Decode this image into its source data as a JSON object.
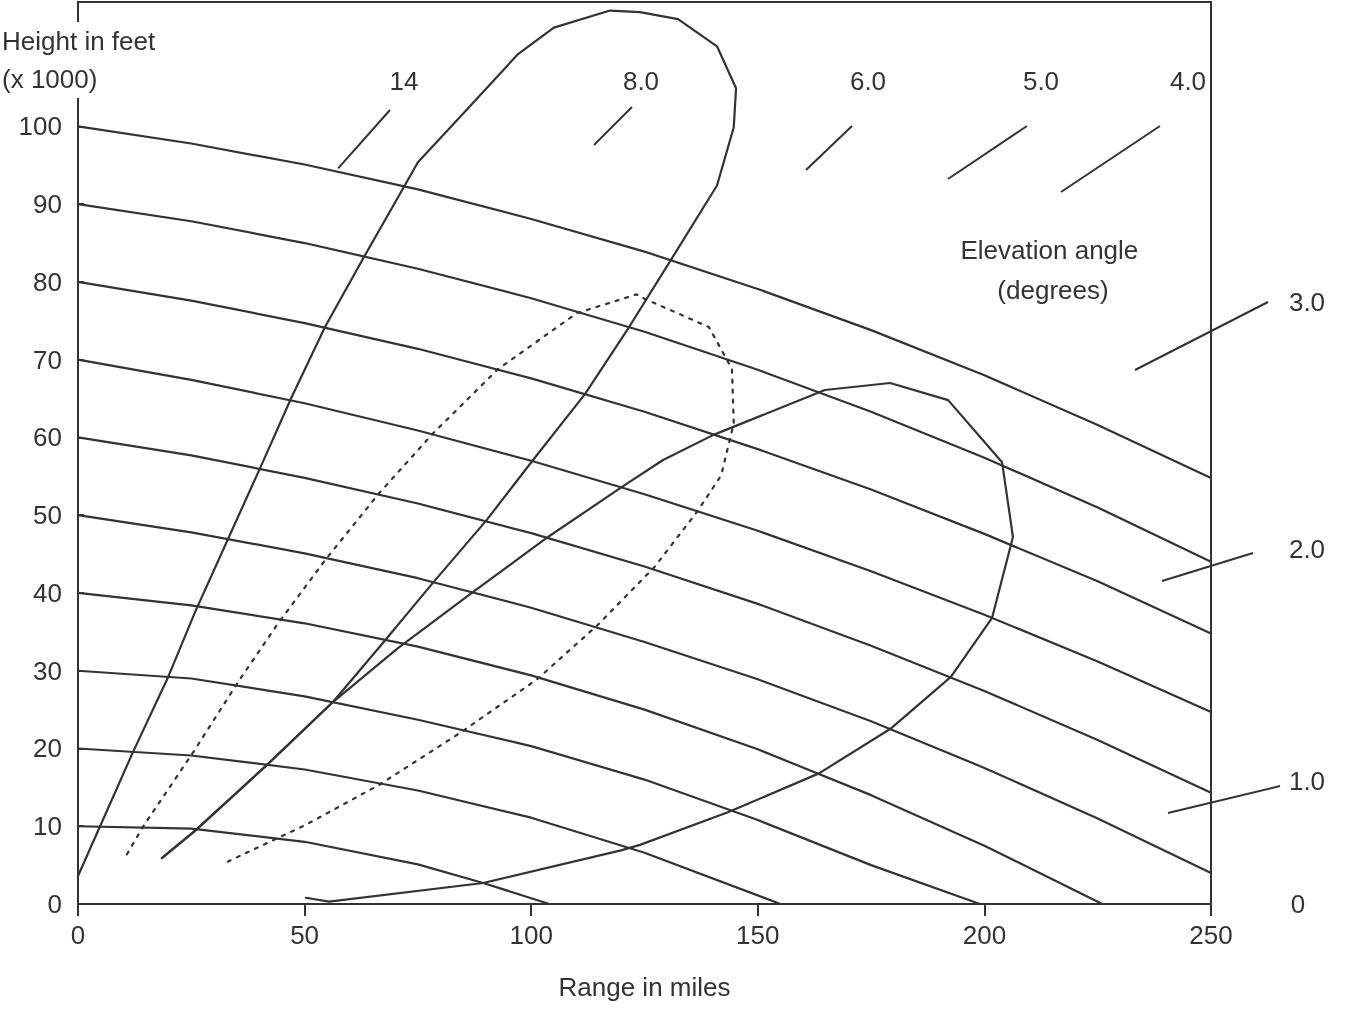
{
  "chart_data": {
    "type": "line",
    "xlabel": "Range in miles",
    "ylabel": "Height in feet (x 1000)",
    "xlim": [
      0,
      250
    ],
    "xticks": [
      0,
      50,
      100,
      150,
      200,
      250
    ],
    "ylim": [
      0,
      116
    ],
    "yticks": [
      0,
      10,
      20,
      30,
      40,
      50,
      60,
      70,
      80,
      90,
      100
    ],
    "grid": false,
    "marker": "none",
    "series": [
      {
        "color": "#333333",
        "line_style": "solid",
        "x": [
          0,
          25,
          50,
          75,
          100,
          125,
          150,
          175,
          200,
          225,
          250
        ],
        "values": [
          100,
          97.8,
          95.1,
          91.9,
          88.1,
          83.9,
          79.1,
          73.8,
          68.0,
          61.6,
          54.8
        ]
      },
      {
        "color": "#333333",
        "line_style": "solid",
        "x": [
          0,
          25,
          50,
          75,
          100,
          125,
          150,
          175,
          200,
          225,
          250
        ],
        "values": [
          90,
          87.8,
          85.0,
          81.7,
          77.9,
          73.6,
          68.7,
          63.3,
          57.4,
          51.0,
          44.0
        ]
      },
      {
        "color": "#333333",
        "line_style": "solid",
        "x": [
          0,
          25,
          50,
          75,
          100,
          125,
          150,
          175,
          200,
          225,
          250
        ],
        "values": [
          80,
          77.6,
          74.7,
          71.4,
          67.6,
          63.3,
          58.5,
          53.3,
          47.6,
          41.5,
          34.8
        ]
      },
      {
        "color": "#333333",
        "line_style": "solid",
        "x": [
          0,
          25,
          50,
          75,
          100,
          125,
          150,
          175,
          200,
          225,
          250
        ],
        "values": [
          70,
          67.4,
          64.4,
          60.9,
          57.0,
          52.7,
          48.0,
          42.8,
          37.2,
          31.2,
          24.7
        ]
      },
      {
        "color": "#333333",
        "line_style": "solid",
        "x": [
          0,
          25,
          50,
          75,
          100,
          125,
          150,
          175,
          200,
          225,
          250
        ],
        "values": [
          60,
          57.7,
          54.8,
          51.5,
          47.7,
          43.4,
          38.6,
          33.2,
          27.4,
          21.1,
          14.3
        ]
      },
      {
        "color": "#333333",
        "line_style": "solid",
        "x": [
          0,
          25,
          50,
          75,
          100,
          125,
          150,
          175,
          200,
          225,
          250
        ],
        "values": [
          50,
          47.8,
          45.1,
          41.9,
          38.1,
          33.7,
          28.9,
          23.5,
          17.5,
          11.0,
          4.0
        ]
      },
      {
        "color": "#333333",
        "line_style": "solid",
        "x": [
          0,
          25,
          50,
          75,
          100,
          125,
          150,
          175,
          200,
          226
        ],
        "values": [
          40,
          38.4,
          36.1,
          33.1,
          29.4,
          25.0,
          19.9,
          14.0,
          7.5,
          0
        ]
      },
      {
        "color": "#333333",
        "line_style": "solid",
        "x": [
          0,
          25,
          50,
          75,
          100,
          125,
          150,
          175,
          199
        ],
        "values": [
          30,
          29.0,
          26.7,
          23.7,
          20.3,
          16.0,
          10.8,
          5.0,
          0
        ]
      },
      {
        "color": "#333333",
        "line_style": "solid",
        "x": [
          0,
          25,
          50,
          75,
          100,
          125,
          155
        ],
        "values": [
          20,
          19.1,
          17.3,
          14.6,
          11.1,
          6.6,
          0
        ]
      },
      {
        "color": "#333333",
        "line_style": "solid",
        "x": [
          0,
          25,
          50,
          75,
          89.4,
          104
        ],
        "values": [
          10,
          9.7,
          8.0,
          5.1,
          2.7,
          0
        ]
      },
      {
        "color": "#333333",
        "line_style": "solid",
        "x": [
          0,
          12.1,
          19.9,
          25.8,
          33.3,
          40.6,
          47.0,
          54.5,
          63.1,
          71.5,
          75.0,
          82.5,
          97.1,
          105.0,
          117.4,
          124.0,
          132.4,
          141.0,
          145.2,
          144.7,
          141.0,
          130.8,
          121.6,
          111.9,
          100.4,
          90.2,
          78.3,
          66.9,
          56.3,
          41.9,
          25.8,
          18.5
        ],
        "values": [
          3.6,
          19.5,
          29.2,
          37.5,
          47.2,
          56.6,
          65.0,
          74.2,
          83.2,
          91.8,
          95.4,
          100.1,
          109.3,
          112.7,
          114.9,
          114.7,
          113.8,
          110.3,
          104.9,
          99.9,
          92.4,
          82.8,
          74.2,
          65.6,
          57.1,
          49.4,
          41.3,
          33.3,
          26.0,
          18.0,
          9.4,
          5.9
        ]
      },
      {
        "color": "#333333",
        "line_style": "solid",
        "x": [
          18.5,
          25.8,
          41.9,
          56.3,
          70.6,
          86.9,
          103.7,
          120.7,
          129.1,
          140.1,
          164.8,
          179.2,
          192.0,
          203.9,
          206.3,
          201.7,
          192.6,
          179.2,
          163.5,
          143.4,
          124.0,
          119.8,
          89.4,
          55.4,
          50.3
        ],
        "values": [
          5.9,
          9.4,
          18.0,
          26.0,
          32.9,
          40.0,
          47.2,
          53.9,
          57.1,
          60.3,
          66.1,
          67.0,
          64.8,
          56.8,
          47.2,
          36.8,
          29.2,
          22.5,
          16.8,
          11.8,
          7.6,
          6.9,
          2.7,
          0.3,
          0.8
        ]
      },
      {
        "color": "#333333",
        "line_style": "dotted",
        "x": [
          10.8,
          14.3,
          25.4,
          35.5,
          43.9,
          54.5,
          66.4,
          78.3,
          92.7,
          110.1,
          123.3,
          124.0,
          139.2,
          144.3,
          144.7,
          141.9,
          136.8,
          127.3,
          114.7,
          101.3,
          84.3,
          66.4,
          50.3,
          31.8
        ],
        "values": [
          6.4,
          9.9,
          19.5,
          28.7,
          35.9,
          44.2,
          52.8,
          60.5,
          68.8,
          76.0,
          78.4,
          78.1,
          74.2,
          68.8,
          61.8,
          55.1,
          50.6,
          43.4,
          35.9,
          28.9,
          22.0,
          15.3,
          10.2,
          5.1
        ]
      }
    ],
    "annotations": [
      {
        "text": "14",
        "x": 57.4,
        "y": 94.6
      },
      "8.0",
      "6.0",
      "5.0",
      "4.0",
      "3.0",
      "2.0",
      "1.0",
      "0",
      "Elevation angle (degrees)"
    ]
  }
}
